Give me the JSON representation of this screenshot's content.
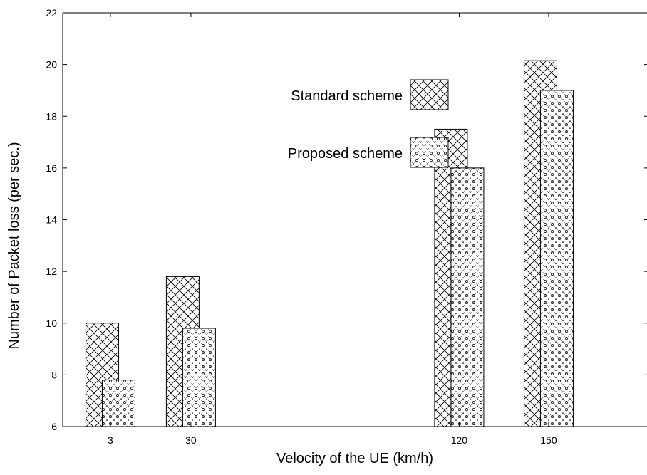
{
  "chart_data": {
    "type": "bar",
    "categories": [
      "3",
      "30",
      "120",
      "150"
    ],
    "series": [
      {
        "name": "Standard scheme",
        "values": [
          10.0,
          11.8,
          17.5,
          20.15
        ],
        "pattern": "crosshatch"
      },
      {
        "name": "Proposed scheme",
        "values": [
          7.8,
          9.8,
          16.0,
          19.0
        ],
        "pattern": "dotted-lattice"
      }
    ],
    "x_positions": [
      3,
      30,
      120,
      150
    ],
    "xlim": [
      -13,
      183
    ],
    "ylim": [
      6,
      22
    ],
    "yticks": [
      "6",
      "8",
      "10",
      "12",
      "14",
      "16",
      "18",
      "20",
      "22"
    ],
    "xlabel": "Velocity of the UE (km/h)",
    "ylabel": "Number of Packet loss (per sec.)",
    "legend_position": "upper-center",
    "grid": false,
    "colors": {
      "line": "#000000",
      "background": "#ffffff"
    }
  }
}
